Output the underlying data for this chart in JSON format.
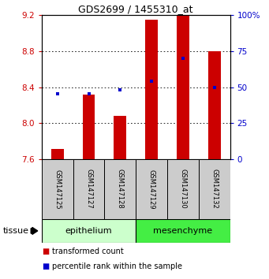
{
  "title": "GDS2699 / 1455310_at",
  "samples": [
    "GSM147125",
    "GSM147127",
    "GSM147128",
    "GSM147129",
    "GSM147130",
    "GSM147132"
  ],
  "bar_values": [
    7.71,
    8.32,
    8.08,
    9.15,
    9.2,
    8.8
  ],
  "bar_base": 7.6,
  "percentile_values": [
    8.33,
    8.33,
    8.37,
    8.47,
    8.72,
    8.4
  ],
  "ylim_left": [
    7.6,
    9.2
  ],
  "ylim_right": [
    0,
    100
  ],
  "yticks_left": [
    7.6,
    8.0,
    8.4,
    8.8,
    9.2
  ],
  "yticks_right": [
    0,
    25,
    50,
    75,
    100
  ],
  "ytick_labels_right": [
    "0",
    "25",
    "50",
    "75",
    "100%"
  ],
  "bar_color": "#cc0000",
  "blue_color": "#0000cc",
  "tissue_groups": [
    {
      "label": "epithelium",
      "indices": [
        0,
        1,
        2
      ],
      "color": "#ccffcc"
    },
    {
      "label": "mesenchyme",
      "indices": [
        3,
        4,
        5
      ],
      "color": "#44ee44"
    }
  ],
  "tissue_label": "tissue",
  "legend_items": [
    {
      "label": "transformed count",
      "color": "#cc0000"
    },
    {
      "label": "percentile rank within the sample",
      "color": "#0000cc"
    }
  ],
  "sample_box_color": "#cccccc",
  "figsize": [
    3.41,
    3.54
  ],
  "dpi": 100
}
